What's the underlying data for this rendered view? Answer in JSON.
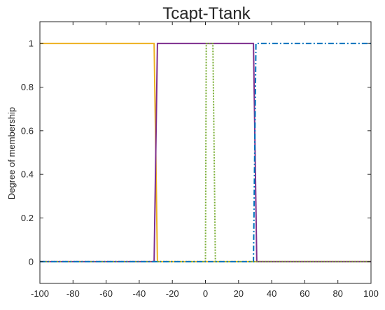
{
  "chart_data": {
    "type": "line",
    "title": "Tcapt-Ttank",
    "xlabel": "",
    "ylabel": "Degree of membership",
    "xlim": [
      -100,
      100
    ],
    "ylim": [
      -0.1,
      1.1
    ],
    "x_ticks": [
      -100,
      -80,
      -60,
      -40,
      -20,
      0,
      20,
      40,
      60,
      80,
      100
    ],
    "x_tick_labels": [
      "-100",
      "-80",
      "-60",
      "-40",
      "-20",
      "0",
      "20",
      "40",
      "60",
      "80",
      "100"
    ],
    "y_ticks": [
      0,
      0.2,
      0.4,
      0.6,
      0.8,
      1
    ],
    "y_tick_labels": [
      "0",
      "0.2",
      "0.4",
      "0.6",
      "0.8",
      "1"
    ],
    "grid": false,
    "legend": "none",
    "series": [
      {
        "color": "#EDB120",
        "line_style": "solid",
        "x": [
          -100,
          -31,
          -29,
          100
        ],
        "y": [
          1,
          1,
          0,
          0
        ]
      },
      {
        "color": "#7E2F8E",
        "line_style": "solid",
        "x": [
          -100,
          -31,
          -29,
          29,
          31,
          100
        ],
        "y": [
          0,
          0,
          1,
          1,
          0,
          0
        ]
      },
      {
        "color": "#77AC30",
        "line_style": "dotted",
        "x": [
          -100,
          0,
          0.5,
          4.5,
          6,
          100
        ],
        "y": [
          0,
          0,
          1,
          1,
          0,
          0
        ]
      },
      {
        "color": "#0072BD",
        "line_style": "dashdot",
        "x": [
          -100,
          29,
          30.5,
          100
        ],
        "y": [
          0,
          0,
          1,
          1
        ]
      }
    ]
  }
}
